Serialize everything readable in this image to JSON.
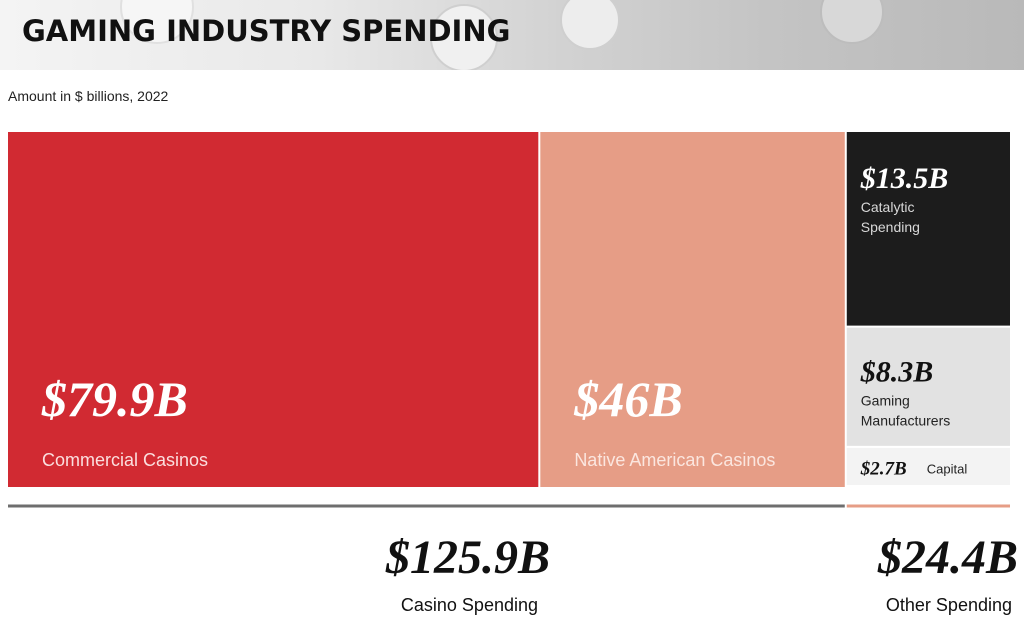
{
  "header": {
    "title": "GAMING INDUSTRY SPENDING",
    "subtitle": "Amount in $ billions, 2022"
  },
  "chart_data": {
    "type": "treemap",
    "title": "GAMING INDUSTRY SPENDING",
    "subtitle": "Amount in $ billions, 2022",
    "unit": "$ billions",
    "segments": [
      {
        "label": "Commercial Casinos",
        "value": 79.9,
        "value_label": "$79.9B",
        "group": 0,
        "color": "#d12a32",
        "text_color": "#ffffff",
        "label_color": "#fbdede"
      },
      {
        "label": "Native American Casinos",
        "value": 46,
        "value_label": "$46B",
        "group": 0,
        "color": "#e69d86",
        "text_color": "#ffffff",
        "label_color": "#fbe6df"
      },
      {
        "label": "Catalytic Spending",
        "value": 13.5,
        "value_label": "$13.5B",
        "group": 1,
        "color": "#1c1c1c",
        "text_color": "#ffffff",
        "label_color": "#d8d8d8"
      },
      {
        "label": "Gaming Manufacturers",
        "value": 8.3,
        "value_label": "$8.3B",
        "group": 1,
        "color": "#e2e2e2",
        "text_color": "#111111",
        "label_color": "#222222"
      },
      {
        "label": "Capital",
        "value": 2.7,
        "value_label": "$2.7B",
        "group": 1,
        "color": "#f3f3f3",
        "text_color": "#111111",
        "label_color": "#222222"
      }
    ],
    "groups": [
      {
        "label": "Casino Spending",
        "total": 125.9,
        "value_label": "$125.9B",
        "line_color": "#6e6e6e"
      },
      {
        "label": "Other Spending",
        "total": 24.4,
        "value_label": "$24.4B",
        "line_color": "#e69d86"
      }
    ]
  }
}
